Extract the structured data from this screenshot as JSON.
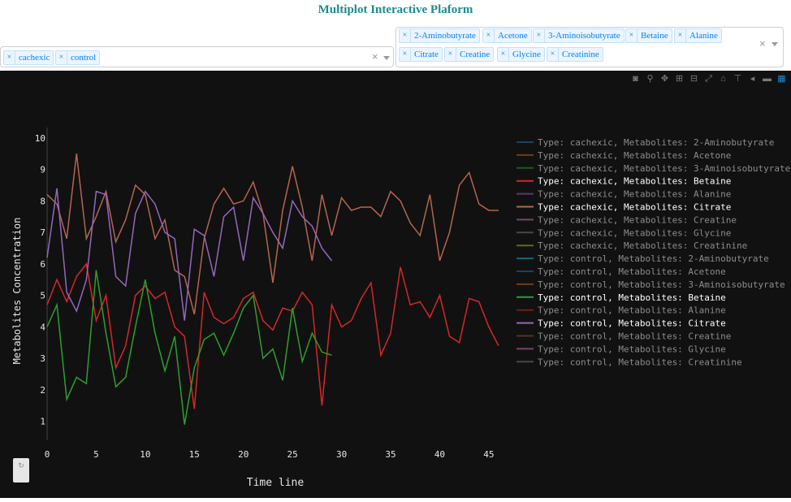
{
  "header": {
    "title": "Multiplot Interactive Plaform"
  },
  "filters": {
    "types": [
      "cachexic",
      "control"
    ],
    "metabolites": [
      "2-Aminobutyrate",
      "Acetone",
      "3-Aminoisobutyrate",
      "Betaine",
      "Alanine",
      "Citrate",
      "Creatine",
      "Glycine",
      "Creatinine"
    ]
  },
  "modebar": {
    "icons": [
      "camera-icon",
      "zoom-icon",
      "pan-icon",
      "zoom-in-icon",
      "zoom-out-icon",
      "autoscale-icon",
      "home-icon",
      "spike-lines-icon",
      "hover-closest-icon",
      "hover-compare-icon",
      "plotly-logo-icon"
    ]
  },
  "reset": {
    "label": "↻"
  },
  "chart_data": {
    "type": "line",
    "xlabel": "Time line",
    "ylabel": "Metabolites Concentration",
    "xlim": [
      0,
      46.5
    ],
    "ylim": [
      0.4,
      10.2
    ],
    "xticks": [
      "0",
      "5",
      "10",
      "15",
      "20",
      "25",
      "30",
      "35",
      "40",
      "45"
    ],
    "yticks": [
      "1",
      "2",
      "3",
      "4",
      "5",
      "6",
      "7",
      "8",
      "9",
      "10"
    ],
    "background": "#111111",
    "grid": false,
    "legend_position": "right",
    "series": [
      {
        "name": "Type: cachexic, Metabolites: 2-Aminobutyrate",
        "color": "#1f77b4",
        "visible": false,
        "values": []
      },
      {
        "name": "Type: cachexic, Metabolites: Acetone",
        "color": "#d2691e",
        "visible": false,
        "values": []
      },
      {
        "name": "Type: cachexic, Metabolites: 3-Aminoisobutyrate",
        "color": "#2ca02c",
        "visible": false,
        "values": []
      },
      {
        "name": "Type: cachexic, Metabolites: Betaine",
        "color": "#d62728",
        "visible": true,
        "x": [
          0,
          1,
          2,
          3,
          4,
          5,
          6,
          7,
          8,
          9,
          10,
          11,
          12,
          13,
          14,
          15,
          16,
          17,
          18,
          19,
          20,
          21,
          22,
          23,
          24,
          25,
          26,
          27,
          28,
          29,
          30,
          31,
          32,
          33,
          34,
          35,
          36,
          37,
          38,
          39,
          40,
          41,
          42,
          43,
          44,
          45,
          46
        ],
        "values": [
          4.7,
          5.5,
          4.8,
          5.6,
          6.0,
          4.2,
          5.0,
          2.7,
          3.4,
          5.0,
          5.3,
          4.9,
          5.1,
          4.0,
          3.7,
          1.4,
          5.1,
          4.3,
          4.1,
          4.3,
          4.9,
          5.1,
          4.2,
          3.9,
          4.6,
          4.5,
          5.1,
          4.7,
          1.5,
          4.7,
          4.0,
          4.2,
          4.9,
          5.4,
          3.1,
          3.8,
          5.9,
          4.7,
          4.8,
          4.3,
          5.0,
          3.7,
          3.5,
          4.9,
          4.8,
          4.0,
          3.4
        ]
      },
      {
        "name": "Type: cachexic, Metabolites: Alanine",
        "color": "#9467bd",
        "visible": false,
        "values": []
      },
      {
        "name": "Type: cachexic, Metabolites: Citrate",
        "color": "#b5654e",
        "visible": true,
        "x": [
          0,
          1,
          2,
          3,
          4,
          5,
          6,
          7,
          8,
          9,
          10,
          11,
          12,
          13,
          14,
          15,
          16,
          17,
          18,
          19,
          20,
          21,
          22,
          23,
          24,
          25,
          26,
          27,
          28,
          29,
          30,
          31,
          32,
          33,
          34,
          35,
          36,
          37,
          38,
          39,
          40,
          41,
          42,
          43,
          44,
          45,
          46
        ],
        "values": [
          8.2,
          7.9,
          6.8,
          9.5,
          6.8,
          7.5,
          8.3,
          6.7,
          7.4,
          8.5,
          8.2,
          6.8,
          7.4,
          5.8,
          5.6,
          4.4,
          6.8,
          7.9,
          8.4,
          7.9,
          8.0,
          8.6,
          7.6,
          5.4,
          7.7,
          9.1,
          7.8,
          6.1,
          8.2,
          6.9,
          8.1,
          7.7,
          7.8,
          7.8,
          7.5,
          8.3,
          8.0,
          7.3,
          6.9,
          8.2,
          6.1,
          7.0,
          8.5,
          8.9,
          7.9,
          7.7,
          7.7
        ]
      },
      {
        "name": "Type: cachexic, Metabolites: Creatine",
        "color": "#e377c2",
        "visible": false,
        "values": []
      },
      {
        "name": "Type: cachexic, Metabolites: Glycine",
        "color": "#7f7f7f",
        "visible": false,
        "values": []
      },
      {
        "name": "Type: cachexic, Metabolites: Creatinine",
        "color": "#bcbd22",
        "visible": false,
        "values": []
      },
      {
        "name": "Type: control, Metabolites: 2-Aminobutyrate",
        "color": "#17becf",
        "visible": false,
        "values": []
      },
      {
        "name": "Type: control, Metabolites: Acetone",
        "color": "#1f77b4",
        "visible": false,
        "values": []
      },
      {
        "name": "Type: control, Metabolites: 3-Aminoisobutyrate",
        "color": "#d2691e",
        "visible": false,
        "values": []
      },
      {
        "name": "Type: control, Metabolites: Betaine",
        "color": "#2ca02c",
        "visible": true,
        "x": [
          0,
          1,
          2,
          3,
          4,
          5,
          6,
          7,
          8,
          9,
          10,
          11,
          12,
          13,
          14,
          15,
          16,
          17,
          18,
          19,
          20,
          21,
          22,
          23,
          24,
          25,
          26,
          27,
          28,
          29
        ],
        "values": [
          4.0,
          4.7,
          1.7,
          2.4,
          2.2,
          5.8,
          3.8,
          2.1,
          2.4,
          4.0,
          5.5,
          3.8,
          2.6,
          3.7,
          0.9,
          2.7,
          3.6,
          3.8,
          3.1,
          3.8,
          4.6,
          5.0,
          3.0,
          3.3,
          2.3,
          4.6,
          2.9,
          3.8,
          3.2,
          3.1
        ]
      },
      {
        "name": "Type: control, Metabolites: Alanine",
        "color": "#d62728",
        "visible": false,
        "values": []
      },
      {
        "name": "Type: control, Metabolites: Citrate",
        "color": "#9467bd",
        "visible": true,
        "x": [
          0,
          1,
          2,
          3,
          4,
          5,
          6,
          7,
          8,
          9,
          10,
          11,
          12,
          13,
          14,
          15,
          16,
          17,
          18,
          19,
          20,
          21,
          22,
          23,
          24,
          25,
          26,
          27,
          28,
          29
        ],
        "values": [
          6.2,
          8.4,
          5.1,
          4.5,
          5.5,
          8.3,
          8.2,
          5.6,
          5.3,
          7.6,
          8.3,
          7.9,
          7.0,
          6.8,
          4.2,
          7.1,
          6.9,
          5.6,
          7.5,
          7.8,
          6.1,
          8.1,
          7.6,
          7.0,
          6.5,
          8.0,
          7.5,
          7.2,
          6.5,
          6.1
        ]
      },
      {
        "name": "Type: control, Metabolites: Creatine",
        "color": "#8c564b",
        "visible": false,
        "values": []
      },
      {
        "name": "Type: control, Metabolites: Glycine",
        "color": "#e377c2",
        "visible": false,
        "values": []
      },
      {
        "name": "Type: control, Metabolites: Creatinine",
        "color": "#7f7f7f",
        "visible": false,
        "values": []
      }
    ]
  }
}
